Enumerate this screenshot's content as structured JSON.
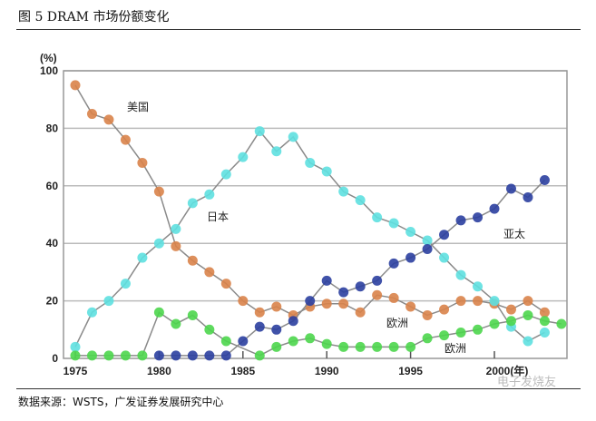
{
  "title": "图 5 DRAM 市场份额变化",
  "source": "数据来源：WSTS，广发证券发展研究中心",
  "watermark": "电子发烧友",
  "chart_data": {
    "type": "line",
    "title": "",
    "xlabel": "(年)",
    "ylabel": "(%)",
    "xlim": [
      1975,
      2004
    ],
    "ylim": [
      0,
      100
    ],
    "grid": "horizontal",
    "x_ticks": [
      1975,
      1980,
      1985,
      1990,
      1995,
      2000
    ],
    "x_tick_labels": [
      "1975",
      "1980",
      "1985",
      "1990",
      "1995",
      "2000(年)"
    ],
    "y_ticks": [
      0,
      20,
      40,
      60,
      80,
      100
    ],
    "series": [
      {
        "name": "美国",
        "color": "#d9834a",
        "x": [
          1975,
          1976,
          1977,
          1978,
          1979,
          1980,
          1981,
          1982,
          1983,
          1984,
          1985,
          1986,
          1987,
          1988,
          1989,
          1990,
          1991,
          1992,
          1993,
          1994,
          1995,
          1996,
          1997,
          1998,
          1999,
          2000,
          2001,
          2002,
          2003
        ],
        "values": [
          95,
          85,
          83,
          76,
          68,
          58,
          39,
          34,
          30,
          26,
          20,
          16,
          18,
          15,
          18,
          19,
          19,
          16,
          22,
          21,
          18,
          15,
          17,
          20,
          20,
          19,
          17,
          20,
          16
        ]
      },
      {
        "name": "日本",
        "color": "#5ee0e0",
        "x": [
          1975,
          1976,
          1977,
          1978,
          1979,
          1980,
          1981,
          1982,
          1983,
          1984,
          1985,
          1986,
          1987,
          1988,
          1989,
          1990,
          1991,
          1992,
          1993,
          1994,
          1995,
          1996,
          1997,
          1998,
          1999,
          2000,
          2001,
          2002,
          2003
        ],
        "values": [
          4,
          16,
          20,
          26,
          35,
          40,
          45,
          54,
          57,
          64,
          70,
          79,
          72,
          77,
          68,
          65,
          58,
          55,
          49,
          47,
          44,
          41,
          35,
          29,
          25,
          20,
          11,
          6,
          9
        ]
      },
      {
        "name": "亚太",
        "color": "#2b3fa0",
        "x": [
          1980,
          1981,
          1982,
          1983,
          1984,
          1985,
          1986,
          1987,
          1988,
          1989,
          1990,
          1991,
          1992,
          1993,
          1994,
          1995,
          1996,
          1997,
          1998,
          1999,
          2000,
          2001,
          2002,
          2003
        ],
        "values": [
          1,
          1,
          1,
          1,
          1,
          6,
          11,
          10,
          13,
          20,
          27,
          23,
          25,
          27,
          33,
          35,
          38,
          43,
          48,
          49,
          52,
          59,
          56,
          62
        ]
      },
      {
        "name": "欧洲",
        "color": "#4cd64c",
        "x": [
          1975,
          1976,
          1977,
          1978,
          1979,
          1980,
          1981,
          1982,
          1983,
          1984,
          1986,
          1987,
          1988,
          1989,
          1990,
          1991,
          1992,
          1993,
          1994,
          1995,
          1996,
          1997,
          1998,
          1999,
          2000,
          2001,
          2002,
          2003,
          2004
        ],
        "values": [
          1,
          1,
          1,
          1,
          1,
          16,
          12,
          15,
          10,
          6,
          1,
          4,
          6,
          7,
          5,
          4,
          4,
          4,
          4,
          4,
          7,
          8,
          9,
          10,
          12,
          13,
          15,
          13,
          12
        ]
      }
    ],
    "annotations": [
      {
        "text": "美国",
        "series": "美国"
      },
      {
        "text": "日本",
        "series": "日本"
      },
      {
        "text": "亚太",
        "series": "亚太"
      },
      {
        "text": "欧洲",
        "series": "欧洲"
      },
      {
        "text": "欧洲",
        "series": "欧洲"
      }
    ]
  }
}
